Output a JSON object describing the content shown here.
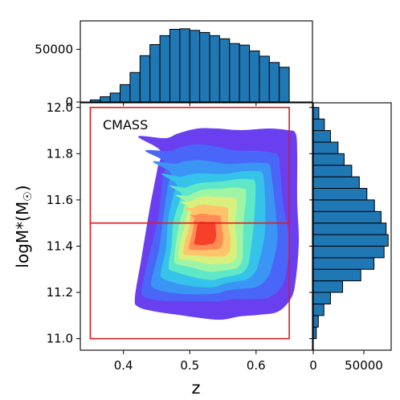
{
  "chart_data": [
    {
      "type": "heatmap",
      "role": "main-density-contour",
      "annotation": "CMASS",
      "xlabel": "z",
      "ylabel": "logM*(M",
      "ylabel_sub": "☉",
      "xlim": [
        0.335,
        0.685
      ],
      "ylim": [
        10.95,
        12.02
      ],
      "xticks": [
        {
          "v": 0.4,
          "label": "0.4"
        },
        {
          "v": 0.5,
          "label": "0.5"
        },
        {
          "v": 0.6,
          "label": "0.6"
        }
      ],
      "yticks": [
        {
          "v": 11.0,
          "label": "11.0"
        },
        {
          "v": 11.2,
          "label": "11.2"
        },
        {
          "v": 11.4,
          "label": "11.4"
        },
        {
          "v": 11.6,
          "label": "11.6"
        },
        {
          "v": 11.8,
          "label": "11.8"
        },
        {
          "v": 12.0,
          "label": "12.0"
        }
      ],
      "selection_box": {
        "z": [
          0.35,
          0.65
        ],
        "logM": [
          11.0,
          12.0
        ],
        "color": "#e41a1c"
      },
      "cut_line_logM": 11.5,
      "colormap": [
        "#6a3ff0",
        "#4a66f8",
        "#3a95f5",
        "#35c3ea",
        "#5fe8c8",
        "#9ef5a5",
        "#d9f07f",
        "#ffc36a",
        "#ff8b55",
        "#f6402a"
      ],
      "peak": {
        "z": 0.513,
        "logM": 11.45
      }
    },
    {
      "type": "bar",
      "role": "top-histogram",
      "xlabel": "z",
      "ylabel": "",
      "xlim": [
        0.335,
        0.685
      ],
      "ylim": [
        0,
        77000
      ],
      "yticks": [
        {
          "v": 0,
          "label": "0"
        },
        {
          "v": 50000,
          "label": "50000"
        }
      ],
      "bin_edges": [
        0.35,
        0.365,
        0.38,
        0.395,
        0.41,
        0.425,
        0.44,
        0.455,
        0.47,
        0.485,
        0.5,
        0.515,
        0.53,
        0.545,
        0.56,
        0.575,
        0.59,
        0.605,
        0.62,
        0.635,
        0.65
      ],
      "values": [
        2000,
        5000,
        8500,
        16500,
        28000,
        44000,
        54500,
        63000,
        69000,
        69500,
        68000,
        66000,
        63000,
        60000,
        55500,
        54000,
        48500,
        43500,
        37500,
        33000
      ],
      "bar_color": "#1f77b4"
    },
    {
      "type": "bar",
      "role": "right-histogram",
      "orientation": "horizontal",
      "xlabel": "",
      "ylabel": "logM*",
      "xlim": [
        0,
        77000
      ],
      "ylim": [
        10.95,
        12.02
      ],
      "xticks": [
        {
          "v": 0,
          "label": "0"
        },
        {
          "v": 50000,
          "label": "50000"
        }
      ],
      "bin_edges": [
        11.0,
        11.05,
        11.1,
        11.15,
        11.2,
        11.25,
        11.3,
        11.35,
        11.4,
        11.45,
        11.5,
        11.55,
        11.6,
        11.65,
        11.7,
        11.75,
        11.8,
        11.85,
        11.9,
        11.95,
        12.0
      ],
      "values": [
        3000,
        5000,
        10500,
        17000,
        29000,
        47000,
        60000,
        70000,
        74000,
        72000,
        67000,
        60500,
        53000,
        45500,
        38000,
        30500,
        24500,
        17000,
        11000,
        5500
      ],
      "bar_color": "#1f77b4"
    }
  ]
}
